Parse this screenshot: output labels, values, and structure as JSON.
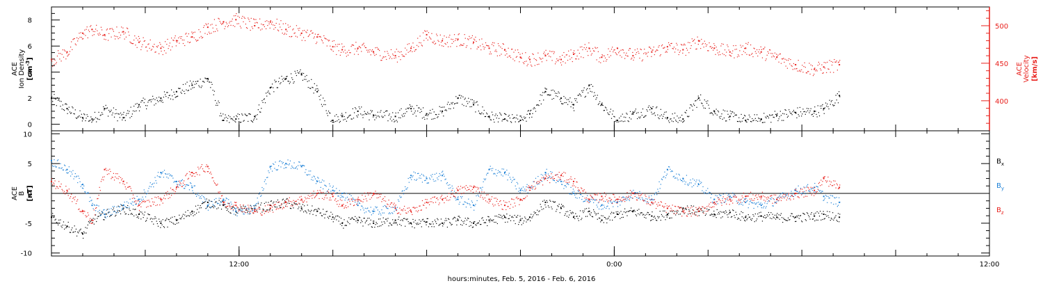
{
  "colors": {
    "black": "#000000",
    "red": "#e8201c",
    "blue": "#1a7fd6"
  },
  "figure": {
    "xlabel": "hours:minutes, Feb.  5, 2016 - Feb.  6, 2016"
  },
  "chart_data": [
    {
      "type": "scatter",
      "panel": "top",
      "ylabel_left_lines": [
        "ACE",
        "Ion Density"
      ],
      "ylabel_left_units": "[cm",
      "ylabel_left_units_sup": "-3",
      "ylabel_left_units_end": "]",
      "ylabel_right_lines": [
        "ACE",
        "Velocity"
      ],
      "ylabel_right_units": "[km/s]",
      "x_axis": {
        "type": "time",
        "start_hours": 6,
        "end_hours": 36,
        "tick_labels": [
          "12:00",
          "0:00",
          "12:00"
        ],
        "tick_hours": [
          12,
          24,
          36
        ]
      },
      "y_left": {
        "range": [
          -0.5,
          9
        ],
        "ticks": [
          0,
          2,
          4,
          6,
          8
        ]
      },
      "y_right": {
        "range": [
          360,
          525
        ],
        "ticks": [
          400,
          450,
          500
        ]
      },
      "series": [
        {
          "color": "black",
          "axis": "left",
          "x_hours": [
            6.0,
            6.5,
            7.0,
            7.3,
            7.7,
            8.3,
            8.8,
            9.5,
            10.0,
            10.5,
            11.0,
            11.5,
            11.9,
            12.5,
            13.0,
            13.5,
            14.0,
            14.5,
            15.0,
            15.3,
            15.8,
            16.3,
            17.0,
            17.5,
            18.0,
            18.5,
            19.0,
            19.5,
            20.0,
            20.5,
            21.0,
            21.3,
            21.8,
            22.3,
            22.7,
            23.2,
            23.6,
            24.1,
            24.6,
            25.2,
            25.7,
            26.2,
            26.7,
            27.2,
            27.7,
            28.2,
            28.7,
            29.2,
            29.8,
            30.4,
            30.7,
            31.2
          ],
          "values": [
            2.0,
            1.2,
            0.5,
            0.4,
            1.2,
            0.5,
            1.5,
            2.0,
            2.5,
            3.0,
            3.5,
            0.3,
            0.4,
            0.6,
            2.8,
            3.5,
            3.8,
            2.5,
            0.3,
            0.6,
            1.0,
            0.7,
            0.6,
            1.2,
            0.8,
            1.0,
            2.0,
            1.5,
            0.6,
            0.4,
            0.3,
            0.8,
            2.5,
            2.0,
            1.5,
            3.0,
            1.5,
            0.3,
            0.8,
            1.2,
            0.5,
            0.4,
            2.0,
            1.0,
            0.6,
            0.3,
            0.4,
            0.7,
            0.9,
            1.0,
            1.2,
            2.2
          ]
        },
        {
          "color": "red",
          "axis": "right",
          "x_hours": [
            6.0,
            6.5,
            7.0,
            7.3,
            7.7,
            8.3,
            8.8,
            9.5,
            10.0,
            10.5,
            11.0,
            11.5,
            11.9,
            12.5,
            13.0,
            13.5,
            14.0,
            14.5,
            15.0,
            15.3,
            15.8,
            16.3,
            17.0,
            17.5,
            18.0,
            18.5,
            19.0,
            19.5,
            20.0,
            20.5,
            21.0,
            21.3,
            21.8,
            22.3,
            22.7,
            23.2,
            23.6,
            24.1,
            24.6,
            25.2,
            25.7,
            26.2,
            26.7,
            27.2,
            27.7,
            28.2,
            28.7,
            29.2,
            29.8,
            30.4,
            30.7,
            31.2
          ],
          "values": [
            455,
            465,
            490,
            495,
            488,
            492,
            478,
            470,
            480,
            485,
            498,
            505,
            508,
            500,
            505,
            495,
            490,
            485,
            472,
            468,
            470,
            465,
            460,
            470,
            488,
            480,
            482,
            478,
            470,
            468,
            458,
            455,
            460,
            455,
            462,
            470,
            458,
            470,
            460,
            465,
            472,
            468,
            480,
            470,
            465,
            470,
            465,
            458,
            448,
            442,
            445,
            448
          ]
        }
      ]
    },
    {
      "type": "scatter",
      "panel": "bottom",
      "ylabel_left_lines": [
        "ACE",
        "B"
      ],
      "ylabel_left_units": "[nT]",
      "x_axis": {
        "type": "time",
        "start_hours": 6,
        "end_hours": 36,
        "tick_labels": [
          "12:00",
          "0:00",
          "12:00"
        ],
        "tick_hours": [
          12,
          24,
          36
        ]
      },
      "y_left": {
        "range": [
          -10.5,
          10.5
        ],
        "ticks": [
          -10,
          -5,
          0,
          5,
          10
        ]
      },
      "legend": {
        "placement": "right",
        "entries": [
          {
            "label": "B",
            "sub": "x",
            "color": "black"
          },
          {
            "label": "B",
            "sub": "y",
            "color": "blue"
          },
          {
            "label": "B",
            "sub": "z",
            "color": "red"
          }
        ]
      },
      "series": [
        {
          "name": "Bx",
          "color": "black",
          "x_hours": [
            6.0,
            6.5,
            7.0,
            7.3,
            7.7,
            8.3,
            8.8,
            9.5,
            10.0,
            10.5,
            11.0,
            11.5,
            11.9,
            12.5,
            13.0,
            13.5,
            14.0,
            14.5,
            15.0,
            15.3,
            15.8,
            16.3,
            17.0,
            17.5,
            18.0,
            18.5,
            19.0,
            19.5,
            20.0,
            20.5,
            21.0,
            21.3,
            21.8,
            22.3,
            22.7,
            23.2,
            23.6,
            24.1,
            24.6,
            25.2,
            25.7,
            26.2,
            26.7,
            27.2,
            27.7,
            28.2,
            28.7,
            29.2,
            29.8,
            30.4,
            30.7,
            31.2
          ],
          "values": [
            -4.0,
            -5.5,
            -6.8,
            -4.5,
            -3.5,
            -2.5,
            -3.5,
            -5.0,
            -4.5,
            -3.0,
            -1.5,
            -2.0,
            -3.0,
            -2.5,
            -2.0,
            -1.5,
            -2.5,
            -3.0,
            -4.0,
            -5.0,
            -4.5,
            -5.0,
            -4.5,
            -5.0,
            -4.8,
            -5.0,
            -4.5,
            -5.0,
            -4.5,
            -4.0,
            -4.5,
            -4.0,
            -1.5,
            -2.5,
            -4.0,
            -3.0,
            -4.5,
            -3.5,
            -3.0,
            -3.8,
            -3.5,
            -2.5,
            -3.0,
            -3.5,
            -3.2,
            -4.0,
            -3.8,
            -4.0,
            -4.0,
            -3.8,
            -3.5,
            -4.0
          ]
        },
        {
          "name": "By",
          "color": "blue",
          "x_hours": [
            6.0,
            6.5,
            7.0,
            7.3,
            7.7,
            8.3,
            8.8,
            9.5,
            10.0,
            10.5,
            11.0,
            11.5,
            11.9,
            12.5,
            13.0,
            13.5,
            14.0,
            14.5,
            15.0,
            15.3,
            15.8,
            16.3,
            17.0,
            17.5,
            18.0,
            18.5,
            19.0,
            19.5,
            20.0,
            20.5,
            21.0,
            21.3,
            21.8,
            22.3,
            22.7,
            23.2,
            23.6,
            24.1,
            24.6,
            25.2,
            25.7,
            26.2,
            26.7,
            27.2,
            27.7,
            28.2,
            28.7,
            29.2,
            29.8,
            30.4,
            30.7,
            31.2
          ],
          "values": [
            5.5,
            4.0,
            1.5,
            -2.0,
            -3.5,
            -2.0,
            -1.0,
            3.5,
            2.0,
            1.0,
            -2.0,
            -1.0,
            -3.0,
            -2.5,
            4.5,
            5.0,
            4.5,
            2.0,
            0.5,
            0.0,
            -2.0,
            -3.0,
            -2.5,
            3.0,
            2.5,
            3.0,
            -1.0,
            -2.0,
            4.0,
            3.5,
            0.5,
            1.0,
            3.5,
            2.0,
            0.0,
            -1.0,
            -2.0,
            -1.5,
            0.0,
            -1.0,
            4.0,
            2.5,
            1.5,
            -1.0,
            -0.5,
            -1.5,
            -2.0,
            -1.0,
            0.5,
            1.0,
            -0.5,
            -1.5
          ]
        },
        {
          "name": "Bz",
          "color": "red",
          "x_hours": [
            6.0,
            6.5,
            7.0,
            7.3,
            7.7,
            8.3,
            8.8,
            9.5,
            10.0,
            10.5,
            11.0,
            11.5,
            11.9,
            12.5,
            13.0,
            13.5,
            14.0,
            14.5,
            15.0,
            15.3,
            15.8,
            16.3,
            17.0,
            17.5,
            18.0,
            18.5,
            19.0,
            19.5,
            20.0,
            20.5,
            21.0,
            21.3,
            21.8,
            22.3,
            22.7,
            23.2,
            23.6,
            24.1,
            24.6,
            25.2,
            25.7,
            26.2,
            26.7,
            27.2,
            27.7,
            28.2,
            28.7,
            29.2,
            29.8,
            30.4,
            30.7,
            31.2
          ],
          "values": [
            2.0,
            0.5,
            -3.0,
            -4.5,
            4.0,
            2.0,
            -2.0,
            -1.0,
            1.0,
            3.5,
            4.5,
            -1.5,
            -2.0,
            -3.0,
            -2.5,
            -1.5,
            -1.0,
            0.0,
            -0.5,
            -2.0,
            -1.0,
            0.0,
            -2.5,
            -3.0,
            -1.5,
            -1.0,
            0.5,
            1.0,
            -1.0,
            -2.0,
            -1.0,
            1.0,
            2.5,
            3.0,
            2.0,
            -1.0,
            -0.5,
            -1.0,
            0.0,
            -1.5,
            -2.5,
            -3.0,
            -3.0,
            -1.5,
            -1.0,
            -0.5,
            -0.5,
            -1.0,
            0.0,
            0.5,
            2.5,
            1.0
          ]
        }
      ]
    }
  ]
}
